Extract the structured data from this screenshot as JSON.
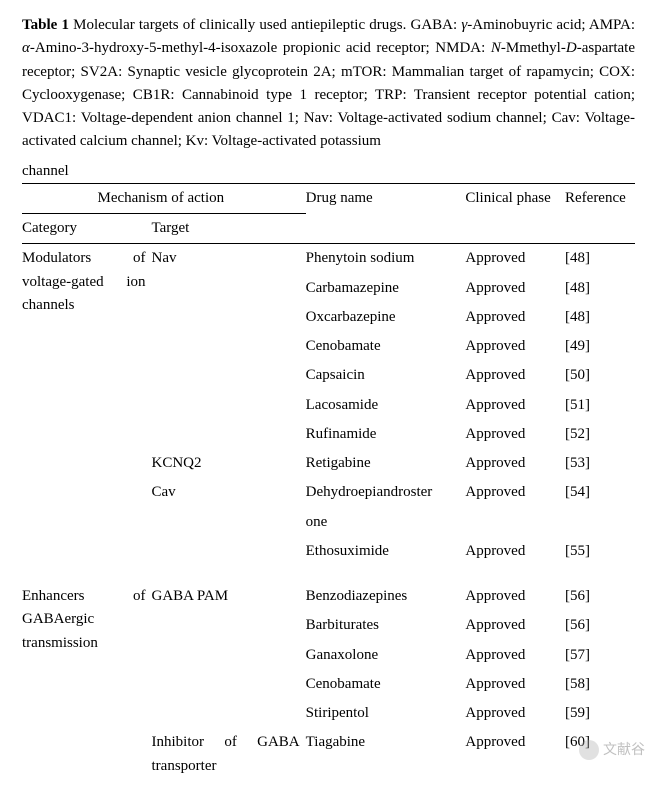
{
  "caption": {
    "label": "Table 1",
    "title_part1": " Molecular targets of clinically used antiepileptic drugs. GABA: ",
    "gaba_gamma": "γ",
    "gaba_rest": "-Aminobuyric acid; ",
    "ampa": "AMPA: ",
    "ampa_alpha": "α",
    "ampa_rest": "-Amino-3-hydroxy-5-methyl-4-isoxazole propionic acid receptor; NMDA: ",
    "nmda_n": "N",
    "nmda_mmethyl": "-Mmethyl-",
    "nmda_d": "D",
    "nmda_rest": "-aspartate receptor; SV2A: Synaptic vesicle glycoprotein 2A; mTOR: Mammalian target of rapamycin; COX: Cyclooxygenase; CB1R: Cannabinoid type 1 receptor; TRP: Transient receptor potential cation; VDAC1: Voltage-dependent anion channel 1; Nav: Voltage-activated sodium channel; Cav: Voltage-activated calcium channel; Kv: Voltage-activated potassium ",
    "last_word": "channel"
  },
  "headers": {
    "mechanism": "Mechanism of action",
    "category": "Category",
    "target": "Target",
    "drug": "Drug name",
    "phase": "Clinical phase",
    "ref": "Reference"
  },
  "rows": [
    {
      "category": "Modulators of voltage-gated ion channels",
      "target": "Nav",
      "drug": "Phenytoin sodium",
      "phase": "Approved",
      "ref": "[48]"
    },
    {
      "category": "",
      "target": "",
      "drug": "Carbamazepine",
      "phase": "Approved",
      "ref": "[48]"
    },
    {
      "category": "",
      "target": "",
      "drug": "Oxcarbazepine",
      "phase": "Approved",
      "ref": "[48]"
    },
    {
      "category": "",
      "target": "",
      "drug": "Cenobamate",
      "phase": "Approved",
      "ref": "[49]"
    },
    {
      "category": "",
      "target": "",
      "drug": "Capsaicin",
      "phase": "Approved",
      "ref": "[50]"
    },
    {
      "category": "",
      "target": "",
      "drug": "Lacosamide",
      "phase": "Approved",
      "ref": "[51]"
    },
    {
      "category": "",
      "target": "",
      "drug": "Rufinamide",
      "phase": "Approved",
      "ref": "[52]"
    },
    {
      "category": "",
      "target": "KCNQ2",
      "drug": "Retigabine",
      "phase": "Approved",
      "ref": "[53]"
    },
    {
      "category": "",
      "target": "Cav",
      "drug": "Dehydroepiandroster",
      "phase": "Approved",
      "ref": "[54]"
    },
    {
      "category": "",
      "target": "",
      "drug": "one",
      "phase": "",
      "ref": ""
    },
    {
      "category": "",
      "target": "",
      "drug": "Ethosuximide",
      "phase": "Approved",
      "ref": "[55]"
    },
    {
      "category": "Enhancers of GABAergic transmission",
      "target": "GABA PAM",
      "drug": "Benzodiazepines",
      "phase": "Approved",
      "ref": "[56]"
    },
    {
      "category": "",
      "target": "",
      "drug": "Barbiturates",
      "phase": "Approved",
      "ref": "[56]"
    },
    {
      "category": "",
      "target": "",
      "drug": "Ganaxolone",
      "phase": "Approved",
      "ref": "[57]"
    },
    {
      "category": "",
      "target": "",
      "drug": "Cenobamate",
      "phase": "Approved",
      "ref": "[58]"
    },
    {
      "category": "",
      "target": "",
      "drug": "Stiripentol",
      "phase": "Approved",
      "ref": "[59]"
    },
    {
      "category": "",
      "target": "Inhibitor of GABA transporter",
      "target_justify": true,
      "drug": "Tiagabine",
      "phase": "Approved",
      "ref": "[60]"
    }
  ],
  "watermark": "文献谷",
  "gap_after_row_index": 10
}
